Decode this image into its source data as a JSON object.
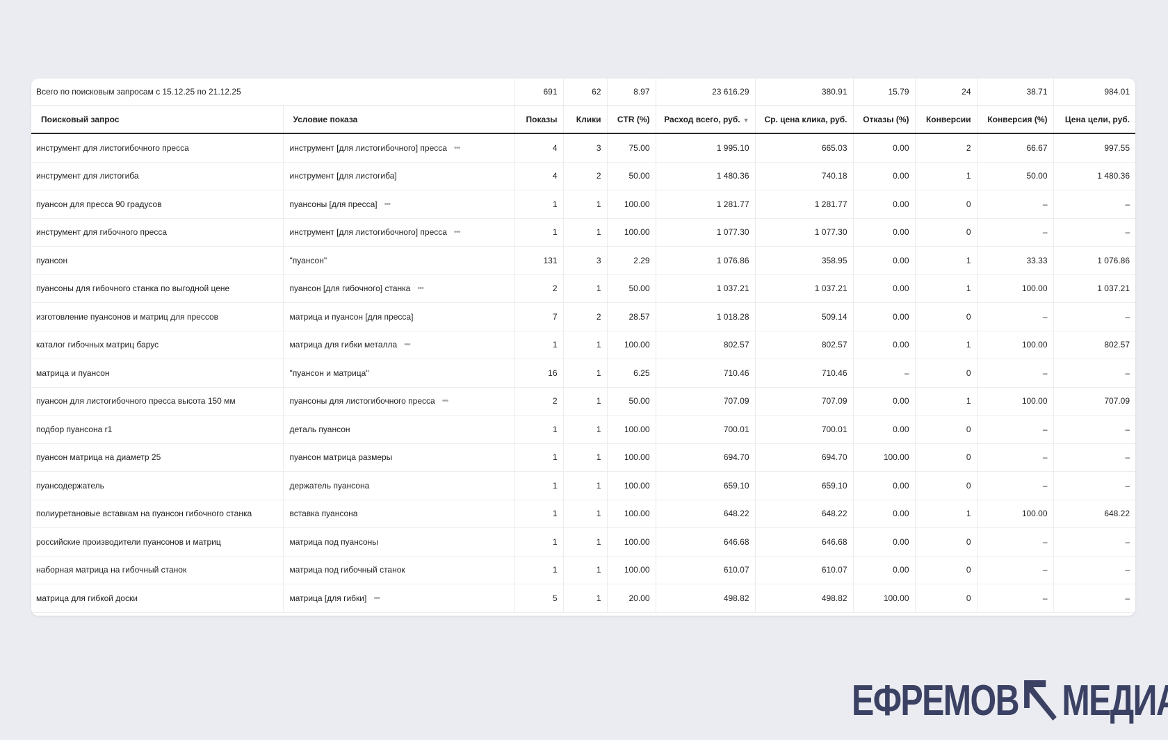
{
  "summary": {
    "label": "Всего по поисковым запросам с 15.12.25 по 21.12.25",
    "shows": "691",
    "clicks": "62",
    "ctr": "8.97",
    "cost": "23 616.29",
    "cpc": "380.91",
    "bounce": "15.79",
    "conversions": "24",
    "conv_rate": "38.71",
    "goal_price": "984.01"
  },
  "columns": {
    "query": "Поисковый запрос",
    "condition": "Условие показа",
    "shows": "Показы",
    "clicks": "Клики",
    "ctr": "CTR (%)",
    "cost": "Расход всего, руб.",
    "cpc": "Ср. цена клика, руб.",
    "bounce": "Отказы (%)",
    "conversions": "Конверсии",
    "conv_rate": "Конверсия (%)",
    "goal_price": "Цена цели, руб."
  },
  "sort_icon": "sort-desc-icon",
  "rows": [
    {
      "query": "инструмент для листогибочного пресса",
      "condition": "инструмент [для листогибочного] пресса",
      "more": true,
      "shows": "4",
      "clicks": "3",
      "ctr": "75.00",
      "cost": "1 995.10",
      "cpc": "665.03",
      "bounce": "0.00",
      "conversions": "2",
      "conv_rate": "66.67",
      "goal_price": "997.55"
    },
    {
      "query": "инструмент для листогиба",
      "condition": "инструмент [для листогиба]",
      "more": false,
      "shows": "4",
      "clicks": "2",
      "ctr": "50.00",
      "cost": "1 480.36",
      "cpc": "740.18",
      "bounce": "0.00",
      "conversions": "1",
      "conv_rate": "50.00",
      "goal_price": "1 480.36"
    },
    {
      "query": "пуансон для пресса 90 градусов",
      "condition": "пуансоны [для пресса]",
      "more": true,
      "shows": "1",
      "clicks": "1",
      "ctr": "100.00",
      "cost": "1 281.77",
      "cpc": "1 281.77",
      "bounce": "0.00",
      "conversions": "0",
      "conv_rate": "–",
      "goal_price": "–"
    },
    {
      "query": "инструмент для гибочного пресса",
      "condition": "инструмент [для листогибочного] пресса",
      "more": true,
      "shows": "1",
      "clicks": "1",
      "ctr": "100.00",
      "cost": "1 077.30",
      "cpc": "1 077.30",
      "bounce": "0.00",
      "conversions": "0",
      "conv_rate": "–",
      "goal_price": "–"
    },
    {
      "query": "пуансон",
      "condition": "\"пуансон\"",
      "more": false,
      "shows": "131",
      "clicks": "3",
      "ctr": "2.29",
      "cost": "1 076.86",
      "cpc": "358.95",
      "bounce": "0.00",
      "conversions": "1",
      "conv_rate": "33.33",
      "goal_price": "1 076.86"
    },
    {
      "query": "пуансоны для гибочного станка по выгодной цене",
      "condition": "пуансон [для гибочного] станка",
      "more": true,
      "shows": "2",
      "clicks": "1",
      "ctr": "50.00",
      "cost": "1 037.21",
      "cpc": "1 037.21",
      "bounce": "0.00",
      "conversions": "1",
      "conv_rate": "100.00",
      "goal_price": "1 037.21"
    },
    {
      "query": "изготовление пуансонов и матриц для прессов",
      "condition": "матрица и пуансон [для пресса]",
      "more": false,
      "shows": "7",
      "clicks": "2",
      "ctr": "28.57",
      "cost": "1 018.28",
      "cpc": "509.14",
      "bounce": "0.00",
      "conversions": "0",
      "conv_rate": "–",
      "goal_price": "–"
    },
    {
      "query": "каталог гибочных матриц барус",
      "condition": "матрица для гибки металла",
      "more": true,
      "shows": "1",
      "clicks": "1",
      "ctr": "100.00",
      "cost": "802.57",
      "cpc": "802.57",
      "bounce": "0.00",
      "conversions": "1",
      "conv_rate": "100.00",
      "goal_price": "802.57"
    },
    {
      "query": "матрица и пуансон",
      "condition": "\"пуансон и матрица\"",
      "more": false,
      "shows": "16",
      "clicks": "1",
      "ctr": "6.25",
      "cost": "710.46",
      "cpc": "710.46",
      "bounce": "–",
      "conversions": "0",
      "conv_rate": "–",
      "goal_price": "–"
    },
    {
      "query": "пуансон для листогибочного пресса высота 150 мм",
      "condition": "пуансоны для листогибочного пресса",
      "more": true,
      "shows": "2",
      "clicks": "1",
      "ctr": "50.00",
      "cost": "707.09",
      "cpc": "707.09",
      "bounce": "0.00",
      "conversions": "1",
      "conv_rate": "100.00",
      "goal_price": "707.09"
    },
    {
      "query": "подбор пуансона r1",
      "condition": "деталь пуансон",
      "more": false,
      "shows": "1",
      "clicks": "1",
      "ctr": "100.00",
      "cost": "700.01",
      "cpc": "700.01",
      "bounce": "0.00",
      "conversions": "0",
      "conv_rate": "–",
      "goal_price": "–"
    },
    {
      "query": "пуансон матрица на диаметр 25",
      "condition": "пуансон матрица размеры",
      "more": false,
      "shows": "1",
      "clicks": "1",
      "ctr": "100.00",
      "cost": "694.70",
      "cpc": "694.70",
      "bounce": "100.00",
      "conversions": "0",
      "conv_rate": "–",
      "goal_price": "–"
    },
    {
      "query": "пуансодержатель",
      "condition": "держатель пуансона",
      "more": false,
      "shows": "1",
      "clicks": "1",
      "ctr": "100.00",
      "cost": "659.10",
      "cpc": "659.10",
      "bounce": "0.00",
      "conversions": "0",
      "conv_rate": "–",
      "goal_price": "–"
    },
    {
      "query": "полиуретановые вставкам на пуансон гибочного станка",
      "condition": "вставка пуансона",
      "more": false,
      "shows": "1",
      "clicks": "1",
      "ctr": "100.00",
      "cost": "648.22",
      "cpc": "648.22",
      "bounce": "0.00",
      "conversions": "1",
      "conv_rate": "100.00",
      "goal_price": "648.22"
    },
    {
      "query": "российские производители пуансонов и матриц",
      "condition": "матрица под пуансоны",
      "more": false,
      "shows": "1",
      "clicks": "1",
      "ctr": "100.00",
      "cost": "646.68",
      "cpc": "646.68",
      "bounce": "0.00",
      "conversions": "0",
      "conv_rate": "–",
      "goal_price": "–"
    },
    {
      "query": "наборная матрица на гибочный станок",
      "condition": "матрица под гибочный станок",
      "more": false,
      "shows": "1",
      "clicks": "1",
      "ctr": "100.00",
      "cost": "610.07",
      "cpc": "610.07",
      "bounce": "0.00",
      "conversions": "0",
      "conv_rate": "–",
      "goal_price": "–"
    },
    {
      "query": "матрица для гибкой доски",
      "condition": "матрица [для гибки]",
      "more": true,
      "shows": "5",
      "clicks": "1",
      "ctr": "20.00",
      "cost": "498.82",
      "cpc": "498.82",
      "bounce": "100.00",
      "conversions": "0",
      "conv_rate": "–",
      "goal_price": "–"
    }
  ],
  "logo": {
    "left": "ЕФРЕМОВ",
    "right": "МЕДИА",
    "color": "#3b4163"
  }
}
